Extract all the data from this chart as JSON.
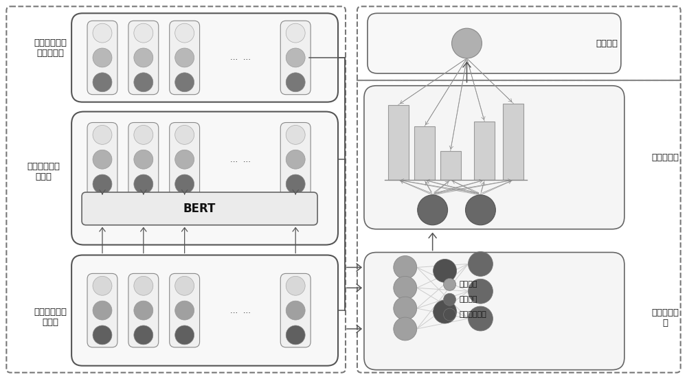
{
  "bg_color": "#ffffff",
  "label_aspect": "评价方面嵌入\n表示初始化",
  "label_text": "文本嵌入表示\n初始化",
  "label_word": "单词嵌入表示\n初始化",
  "label_predict": "预测模块",
  "label_attention": "注意力模块",
  "label_graph": "图注意力模\n块",
  "bert_label": "BERT",
  "legend_word": "单词结点",
  "legend_text": "文本结点",
  "legend_aspect": "评价方面结点",
  "circle_top_aspect": "#e8e8e8",
  "circle_mid_aspect": "#b8b8b8",
  "circle_bot_aspect": "#787878",
  "circle_top_text": "#e0e0e0",
  "circle_mid_text": "#b0b0b0",
  "circle_bot_text": "#707070",
  "circle_top_word": "#d8d8d8",
  "circle_mid_word": "#a0a0a0",
  "circle_bot_word": "#606060",
  "node_word_color": "#a0a0a0",
  "node_text_color": "#686868",
  "node_aspect_color": "#505050",
  "predict_node_color": "#b0b0b0",
  "attn_node_color": "#686868",
  "bar_color": "#d0d0d0",
  "bar_edge_color": "#999999",
  "line_color": "#aaaaaa",
  "arrow_color": "#555555",
  "box_edge_color": "#555555",
  "dashed_edge_color": "#777777"
}
